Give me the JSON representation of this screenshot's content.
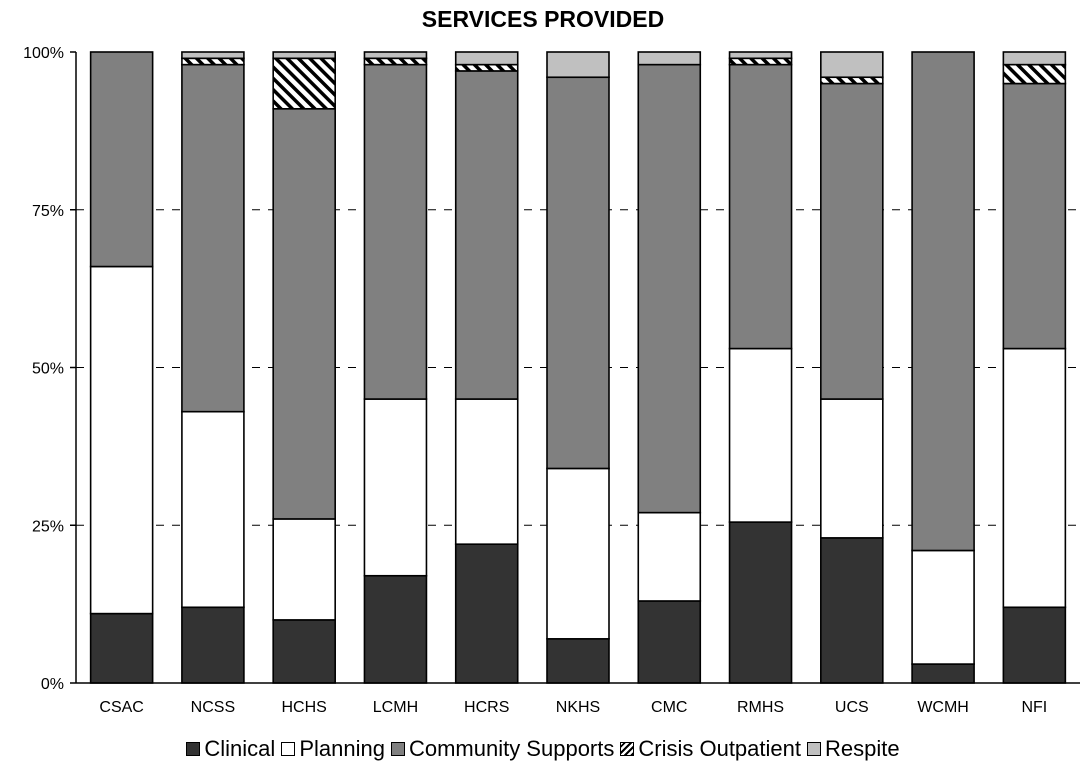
{
  "chart_data": {
    "type": "bar",
    "stacked": true,
    "normalized": true,
    "title": "SERVICES PROVIDED",
    "xlabel": "",
    "ylabel": "",
    "ylim": [
      0,
      100
    ],
    "yticks": [
      "0%",
      "25%",
      "50%",
      "75%",
      "100%"
    ],
    "ytick_values": [
      0,
      25,
      50,
      75,
      100
    ],
    "grid": "horizontal dashed",
    "legend_position": "bottom",
    "categories": [
      "CSAC",
      "NCSS",
      "HCHS",
      "LCMH",
      "HCRS",
      "NKHS",
      "CMC",
      "RMHS",
      "UCS",
      "WCMH",
      "NFI"
    ],
    "series": [
      {
        "name": "Clinical",
        "color": "#333333",
        "pattern": "solid",
        "values": [
          11,
          12,
          10,
          17,
          22,
          7,
          13,
          25.5,
          23,
          3,
          12
        ]
      },
      {
        "name": "Planning",
        "color": "#ffffff",
        "pattern": "solid",
        "values": [
          55,
          31,
          16,
          28,
          23,
          27,
          14,
          27.5,
          22,
          18,
          41
        ]
      },
      {
        "name": "Community Supports",
        "color": "#808080",
        "pattern": "solid",
        "values": [
          34,
          55,
          65,
          53,
          52,
          62,
          71,
          45,
          50,
          79,
          42
        ]
      },
      {
        "name": "Crisis Outpatient",
        "color": "#ffffff",
        "pattern": "hatch",
        "values": [
          0,
          1,
          8,
          1,
          1,
          0,
          0,
          1,
          1,
          0,
          3
        ]
      },
      {
        "name": "Respite",
        "color": "#c0c0c0",
        "pattern": "solid",
        "values": [
          0,
          1,
          1,
          1,
          2,
          4,
          2,
          1,
          4,
          0,
          2
        ]
      }
    ]
  }
}
